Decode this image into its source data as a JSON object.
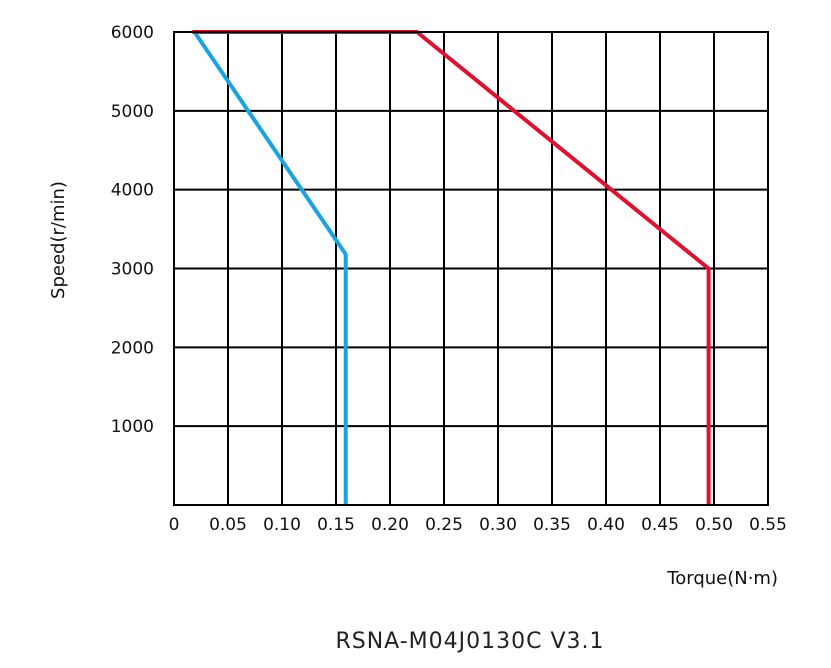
{
  "chart_data": {
    "type": "line",
    "title": "RSNA-M04J0130C V3.1",
    "xlabel": "Torque(N·m)",
    "ylabel": "Speed(r/min)",
    "xlim": [
      0,
      0.55
    ],
    "ylim": [
      0,
      6000
    ],
    "x_ticks": [
      0,
      0.05,
      0.1,
      0.15,
      0.2,
      0.25,
      0.3,
      0.35,
      0.4,
      0.45,
      0.5,
      0.55
    ],
    "x_tick_labels": [
      "0",
      "0.05",
      "0.10",
      "0.15",
      "0.20",
      "0.25",
      "0.30",
      "0.35",
      "0.40",
      "0.45",
      "0.50",
      "0.55"
    ],
    "y_ticks": [
      1000,
      2000,
      3000,
      4000,
      5000,
      6000
    ],
    "y_tick_labels": [
      "1000",
      "2000",
      "3000",
      "4000",
      "5000",
      "6000"
    ],
    "grid": true,
    "series": [
      {
        "color": "#1aa3e0",
        "points": [
          [
            0.019,
            6000
          ],
          [
            0.159,
            3180
          ],
          [
            0.159,
            0
          ]
        ]
      },
      {
        "color": "#e0102f",
        "points": [
          [
            0.017,
            6000
          ],
          [
            0.225,
            6000
          ],
          [
            0.495,
            3000
          ],
          [
            0.495,
            0
          ]
        ]
      }
    ]
  }
}
